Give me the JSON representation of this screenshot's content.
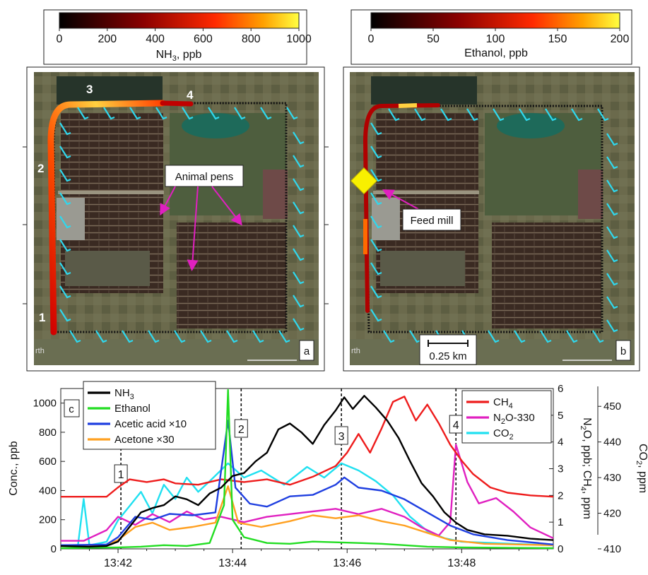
{
  "map_a": {
    "colorbar": {
      "ticks": [
        "0",
        "200",
        "400",
        "600",
        "800",
        "1000"
      ],
      "label_main": "NH",
      "label_sub": "3",
      "label_unit": ", ppb"
    },
    "panel_label": "a",
    "site_labels": [
      "1",
      "2",
      "3",
      "4"
    ],
    "annotation": "Animal pens",
    "watermark": "rth"
  },
  "map_b": {
    "colorbar": {
      "ticks": [
        "0",
        "50",
        "100",
        "150",
        "200"
      ],
      "label": "Ethanol, ppb"
    },
    "panel_label": "b",
    "annotation": "Feed mill",
    "scale_bar": "0.25 km",
    "watermark": "rth"
  },
  "chart_data": {
    "type": "line",
    "panel_label": "c",
    "x_ticks": [
      "13:42",
      "13:44",
      "13:46",
      "13:48"
    ],
    "x_range_min": [
      41.0,
      49.6
    ],
    "left_axis": {
      "label": "Conc., ppb",
      "range": [
        0,
        1100
      ],
      "ticks": [
        "0",
        "200",
        "400",
        "600",
        "800",
        "1000"
      ]
    },
    "mid_axis": {
      "label_parts": [
        "N",
        "2",
        "O, ppb; CH",
        "4",
        ", ppm"
      ],
      "range": [
        0,
        6
      ],
      "ticks": [
        "0",
        "1",
        "2",
        "3",
        "4",
        "5",
        "6"
      ]
    },
    "right_axis": {
      "label_parts": [
        "CO",
        "2",
        ", ppm"
      ],
      "range": [
        410,
        455
      ],
      "ticks": [
        "410",
        "420",
        "430",
        "440",
        "450"
      ]
    },
    "markers": [
      {
        "label": "1",
        "x": 42.05
      },
      {
        "label": "2",
        "x": 44.15
      },
      {
        "label": "3",
        "x": 45.9
      },
      {
        "label": "4",
        "x": 47.9
      }
    ],
    "legend_left": [
      {
        "main": "NH",
        "sub": "3",
        "rest": "",
        "color": "#000000"
      },
      {
        "main": "Ethanol",
        "sub": "",
        "rest": "",
        "color": "#22dd22"
      },
      {
        "main": "Acetic acid ×10",
        "sub": "",
        "rest": "",
        "color": "#1f3fe0"
      },
      {
        "main": "Acetone ×30",
        "sub": "",
        "rest": "",
        "color": "#ffa020"
      }
    ],
    "legend_right": [
      {
        "main": "CH",
        "sub": "4",
        "rest": "",
        "color": "#ee1c1c"
      },
      {
        "main": "N",
        "sub": "2",
        "rest": "O-330",
        "color": "#e020c0"
      },
      {
        "main": "CO",
        "sub": "2",
        "rest": "",
        "color": "#20e0f0"
      }
    ],
    "series": [
      {
        "name": "NH3",
        "axis": "left",
        "color": "#000000",
        "points": [
          [
            41.0,
            20
          ],
          [
            41.5,
            15
          ],
          [
            41.8,
            20
          ],
          [
            42.0,
            50
          ],
          [
            42.2,
            150
          ],
          [
            42.4,
            250
          ],
          [
            42.6,
            280
          ],
          [
            42.8,
            300
          ],
          [
            43.0,
            360
          ],
          [
            43.2,
            340
          ],
          [
            43.4,
            300
          ],
          [
            43.6,
            380
          ],
          [
            43.8,
            420
          ],
          [
            44.0,
            500
          ],
          [
            44.2,
            520
          ],
          [
            44.4,
            600
          ],
          [
            44.6,
            660
          ],
          [
            44.8,
            820
          ],
          [
            45.0,
            860
          ],
          [
            45.2,
            800
          ],
          [
            45.4,
            720
          ],
          [
            45.6,
            850
          ],
          [
            45.8,
            950
          ],
          [
            45.95,
            1040
          ],
          [
            46.1,
            960
          ],
          [
            46.3,
            1050
          ],
          [
            46.5,
            970
          ],
          [
            46.7,
            880
          ],
          [
            46.9,
            760
          ],
          [
            47.1,
            600
          ],
          [
            47.3,
            450
          ],
          [
            47.5,
            360
          ],
          [
            47.7,
            250
          ],
          [
            47.9,
            180
          ],
          [
            48.1,
            130
          ],
          [
            48.4,
            100
          ],
          [
            48.8,
            90
          ],
          [
            49.2,
            70
          ],
          [
            49.6,
            60
          ]
        ]
      },
      {
        "name": "Ethanol",
        "axis": "left",
        "color": "#22dd22",
        "points": [
          [
            41.0,
            5
          ],
          [
            42.0,
            10
          ],
          [
            42.4,
            15
          ],
          [
            42.8,
            25
          ],
          [
            43.2,
            20
          ],
          [
            43.6,
            40
          ],
          [
            43.85,
            300
          ],
          [
            43.92,
            1090
          ],
          [
            44.0,
            200
          ],
          [
            44.2,
            80
          ],
          [
            44.6,
            40
          ],
          [
            45.0,
            35
          ],
          [
            45.4,
            50
          ],
          [
            45.8,
            45
          ],
          [
            46.2,
            40
          ],
          [
            46.6,
            35
          ],
          [
            47.0,
            25
          ],
          [
            47.4,
            15
          ],
          [
            48.0,
            10
          ],
          [
            49.6,
            5
          ]
        ]
      },
      {
        "name": "Acetic acid x10",
        "axis": "left",
        "color": "#1f3fe0",
        "points": [
          [
            41.0,
            25
          ],
          [
            41.8,
            30
          ],
          [
            42.0,
            80
          ],
          [
            42.3,
            220
          ],
          [
            42.6,
            200
          ],
          [
            42.9,
            240
          ],
          [
            43.3,
            230
          ],
          [
            43.7,
            250
          ],
          [
            43.92,
            880
          ],
          [
            44.05,
            420
          ],
          [
            44.3,
            310
          ],
          [
            44.6,
            290
          ],
          [
            45.0,
            360
          ],
          [
            45.4,
            370
          ],
          [
            45.8,
            440
          ],
          [
            45.95,
            490
          ],
          [
            46.2,
            420
          ],
          [
            46.6,
            400
          ],
          [
            47.0,
            340
          ],
          [
            47.4,
            250
          ],
          [
            47.8,
            160
          ],
          [
            48.2,
            100
          ],
          [
            48.8,
            60
          ],
          [
            49.6,
            30
          ]
        ]
      },
      {
        "name": "Acetone x30",
        "axis": "left",
        "color": "#ffa020",
        "points": [
          [
            41.0,
            20
          ],
          [
            41.8,
            25
          ],
          [
            42.0,
            60
          ],
          [
            42.3,
            150
          ],
          [
            42.6,
            180
          ],
          [
            42.9,
            130
          ],
          [
            43.3,
            150
          ],
          [
            43.7,
            180
          ],
          [
            43.92,
            430
          ],
          [
            44.1,
            180
          ],
          [
            44.5,
            150
          ],
          [
            45.0,
            190
          ],
          [
            45.4,
            230
          ],
          [
            45.8,
            210
          ],
          [
            46.2,
            230
          ],
          [
            46.6,
            190
          ],
          [
            47.0,
            160
          ],
          [
            47.4,
            110
          ],
          [
            47.8,
            60
          ],
          [
            48.4,
            35
          ],
          [
            49.6,
            25
          ]
        ]
      },
      {
        "name": "CH4",
        "axis": "mid",
        "color": "#ee1c1c",
        "points": [
          [
            41.0,
            1.95
          ],
          [
            41.8,
            1.95
          ],
          [
            42.0,
            2.3
          ],
          [
            42.2,
            2.6
          ],
          [
            42.5,
            2.5
          ],
          [
            42.8,
            2.6
          ],
          [
            43.0,
            2.45
          ],
          [
            43.4,
            2.4
          ],
          [
            43.8,
            2.6
          ],
          [
            44.2,
            2.5
          ],
          [
            44.6,
            2.6
          ],
          [
            45.0,
            2.4
          ],
          [
            45.4,
            2.7
          ],
          [
            45.8,
            3.1
          ],
          [
            46.0,
            3.6
          ],
          [
            46.2,
            4.3
          ],
          [
            46.4,
            3.6
          ],
          [
            46.6,
            4.5
          ],
          [
            46.8,
            5.5
          ],
          [
            47.0,
            5.7
          ],
          [
            47.2,
            4.8
          ],
          [
            47.4,
            5.4
          ],
          [
            47.6,
            4.7
          ],
          [
            47.8,
            3.9
          ],
          [
            48.0,
            3.3
          ],
          [
            48.2,
            2.8
          ],
          [
            48.5,
            2.3
          ],
          [
            48.8,
            2.1
          ],
          [
            49.2,
            2.0
          ],
          [
            49.6,
            1.95
          ]
        ]
      },
      {
        "name": "N2O-330",
        "axis": "mid",
        "color": "#e020c0",
        "points": [
          [
            41.0,
            0.3
          ],
          [
            41.4,
            0.3
          ],
          [
            41.8,
            0.7
          ],
          [
            42.0,
            1.2
          ],
          [
            42.3,
            0.9
          ],
          [
            42.6,
            1.3
          ],
          [
            42.9,
            1.0
          ],
          [
            43.2,
            1.4
          ],
          [
            43.5,
            1.1
          ],
          [
            43.8,
            1.2
          ],
          [
            44.2,
            1.0
          ],
          [
            44.6,
            1.2
          ],
          [
            45.0,
            1.3
          ],
          [
            45.4,
            1.4
          ],
          [
            45.8,
            1.5
          ],
          [
            46.2,
            1.3
          ],
          [
            46.6,
            1.5
          ],
          [
            47.0,
            1.2
          ],
          [
            47.3,
            0.8
          ],
          [
            47.6,
            0.5
          ],
          [
            47.8,
            1.0
          ],
          [
            47.9,
            3.9
          ],
          [
            48.1,
            2.5
          ],
          [
            48.3,
            1.7
          ],
          [
            48.6,
            1.9
          ],
          [
            48.9,
            1.4
          ],
          [
            49.2,
            0.8
          ],
          [
            49.6,
            0.4
          ]
        ]
      },
      {
        "name": "CO2",
        "axis": "right",
        "color": "#20e0f0",
        "points": [
          [
            41.0,
            411
          ],
          [
            41.3,
            411
          ],
          [
            41.4,
            424
          ],
          [
            41.5,
            411
          ],
          [
            41.8,
            412
          ],
          [
            42.0,
            418
          ],
          [
            42.2,
            422
          ],
          [
            42.4,
            426
          ],
          [
            42.6,
            420
          ],
          [
            42.8,
            428
          ],
          [
            43.0,
            424
          ],
          [
            43.2,
            430
          ],
          [
            43.4,
            426
          ],
          [
            43.6,
            429
          ],
          [
            43.92,
            434
          ],
          [
            44.2,
            430
          ],
          [
            44.5,
            432
          ],
          [
            44.9,
            428
          ],
          [
            45.3,
            433
          ],
          [
            45.6,
            430
          ],
          [
            45.9,
            434
          ],
          [
            46.2,
            432
          ],
          [
            46.5,
            429
          ],
          [
            46.8,
            425
          ],
          [
            47.1,
            419
          ],
          [
            47.4,
            415
          ],
          [
            47.7,
            413
          ],
          [
            48.0,
            412
          ],
          [
            49.6,
            411
          ]
        ]
      }
    ]
  }
}
